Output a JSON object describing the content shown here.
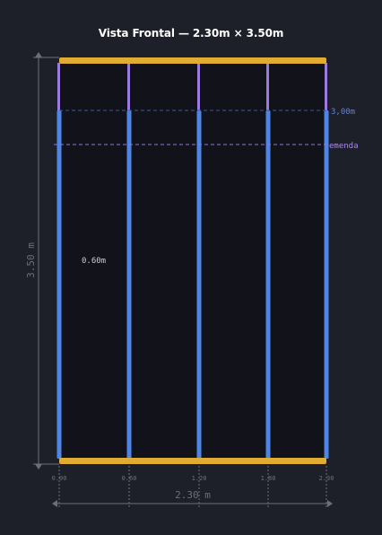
{
  "title": "Vista Frontal — 2.30m × 3.50m",
  "dimensions": {
    "height_label": "3.50 m",
    "width_label": "2.30 m"
  },
  "levels": {
    "splice_height_label": "3,00m",
    "splice_label": "emenda"
  },
  "spacing_label": "0.60m",
  "x_ticks": [
    "0.00",
    "0.60",
    "1.20",
    "1.80",
    "2.30"
  ],
  "colors": {
    "background": "#1e2029",
    "panel": "#12131a",
    "plate": "#e1ac32",
    "stud_lower": "#4f86e6",
    "stud_upper": "#9a7be0",
    "dimension_line": "#6b6f7c",
    "splice_line": "#8c78d6",
    "level_line": "#3c5a96"
  }
}
